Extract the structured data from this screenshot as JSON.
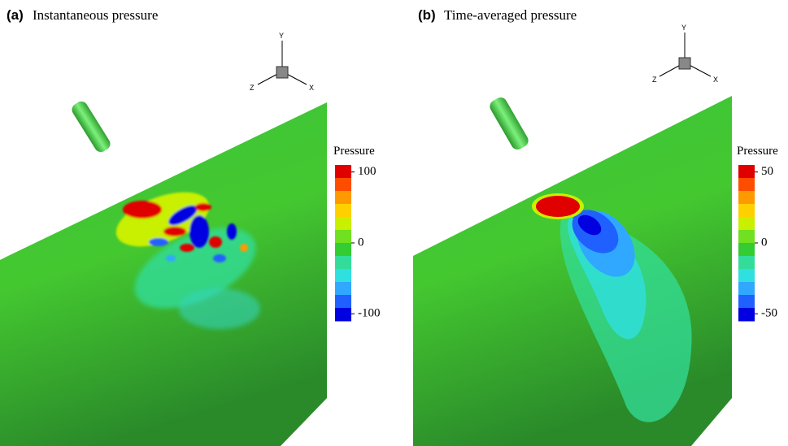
{
  "panels": [
    {
      "label": "(a)",
      "title": "Instantaneous pressure",
      "colorbar": {
        "title": "Pressure",
        "lim": [
          -110,
          110
        ],
        "ticks": [
          100,
          0,
          -100
        ],
        "colors": [
          "#e00000",
          "#ff4d00",
          "#ff9900",
          "#ffd000",
          "#c8f000",
          "#70e020",
          "#33cc33",
          "#33dd99",
          "#30e0e0",
          "#30a8ff",
          "#2060ff",
          "#0000e0"
        ]
      }
    },
    {
      "label": "(b)",
      "title": "Time-averaged pressure",
      "colorbar": {
        "title": "Pressure",
        "lim": [
          -55,
          55
        ],
        "ticks": [
          50,
          0,
          -50
        ],
        "colors": [
          "#e00000",
          "#ff4d00",
          "#ff9900",
          "#ffd000",
          "#c8f000",
          "#70e020",
          "#33cc33",
          "#33dd99",
          "#30e0e0",
          "#30a8ff",
          "#2060ff",
          "#0000e0"
        ]
      }
    }
  ],
  "axes": {
    "y": "Y",
    "z": "Z",
    "x": "X"
  }
}
